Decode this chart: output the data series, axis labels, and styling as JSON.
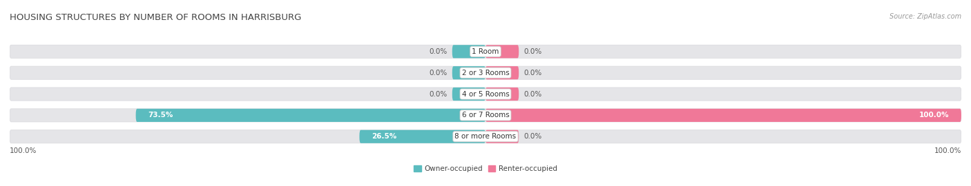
{
  "title": "HOUSING STRUCTURES BY NUMBER OF ROOMS IN HARRISBURG",
  "source": "Source: ZipAtlas.com",
  "categories": [
    "1 Room",
    "2 or 3 Rooms",
    "4 or 5 Rooms",
    "6 or 7 Rooms",
    "8 or more Rooms"
  ],
  "owner_values": [
    0.0,
    0.0,
    0.0,
    73.5,
    26.5
  ],
  "renter_values": [
    0.0,
    0.0,
    0.0,
    100.0,
    0.0
  ],
  "owner_color": "#5bbcbf",
  "renter_color": "#f07898",
  "bar_bg_color": "#e5e5e8",
  "bar_bg_edge": "#d8d8dc",
  "bar_height": 0.62,
  "figsize": [
    14.06,
    2.7
  ],
  "dpi": 100,
  "owner_label": "Owner-occupied",
  "renter_label": "Renter-occupied",
  "bottom_left_label": "100.0%",
  "bottom_right_label": "100.0%",
  "title_fontsize": 9.5,
  "label_fontsize": 7.5,
  "cat_fontsize": 7.5,
  "source_fontsize": 7,
  "stub_pct": 7.0,
  "center_label_bg": "white",
  "center_label_border": "#cccccc"
}
